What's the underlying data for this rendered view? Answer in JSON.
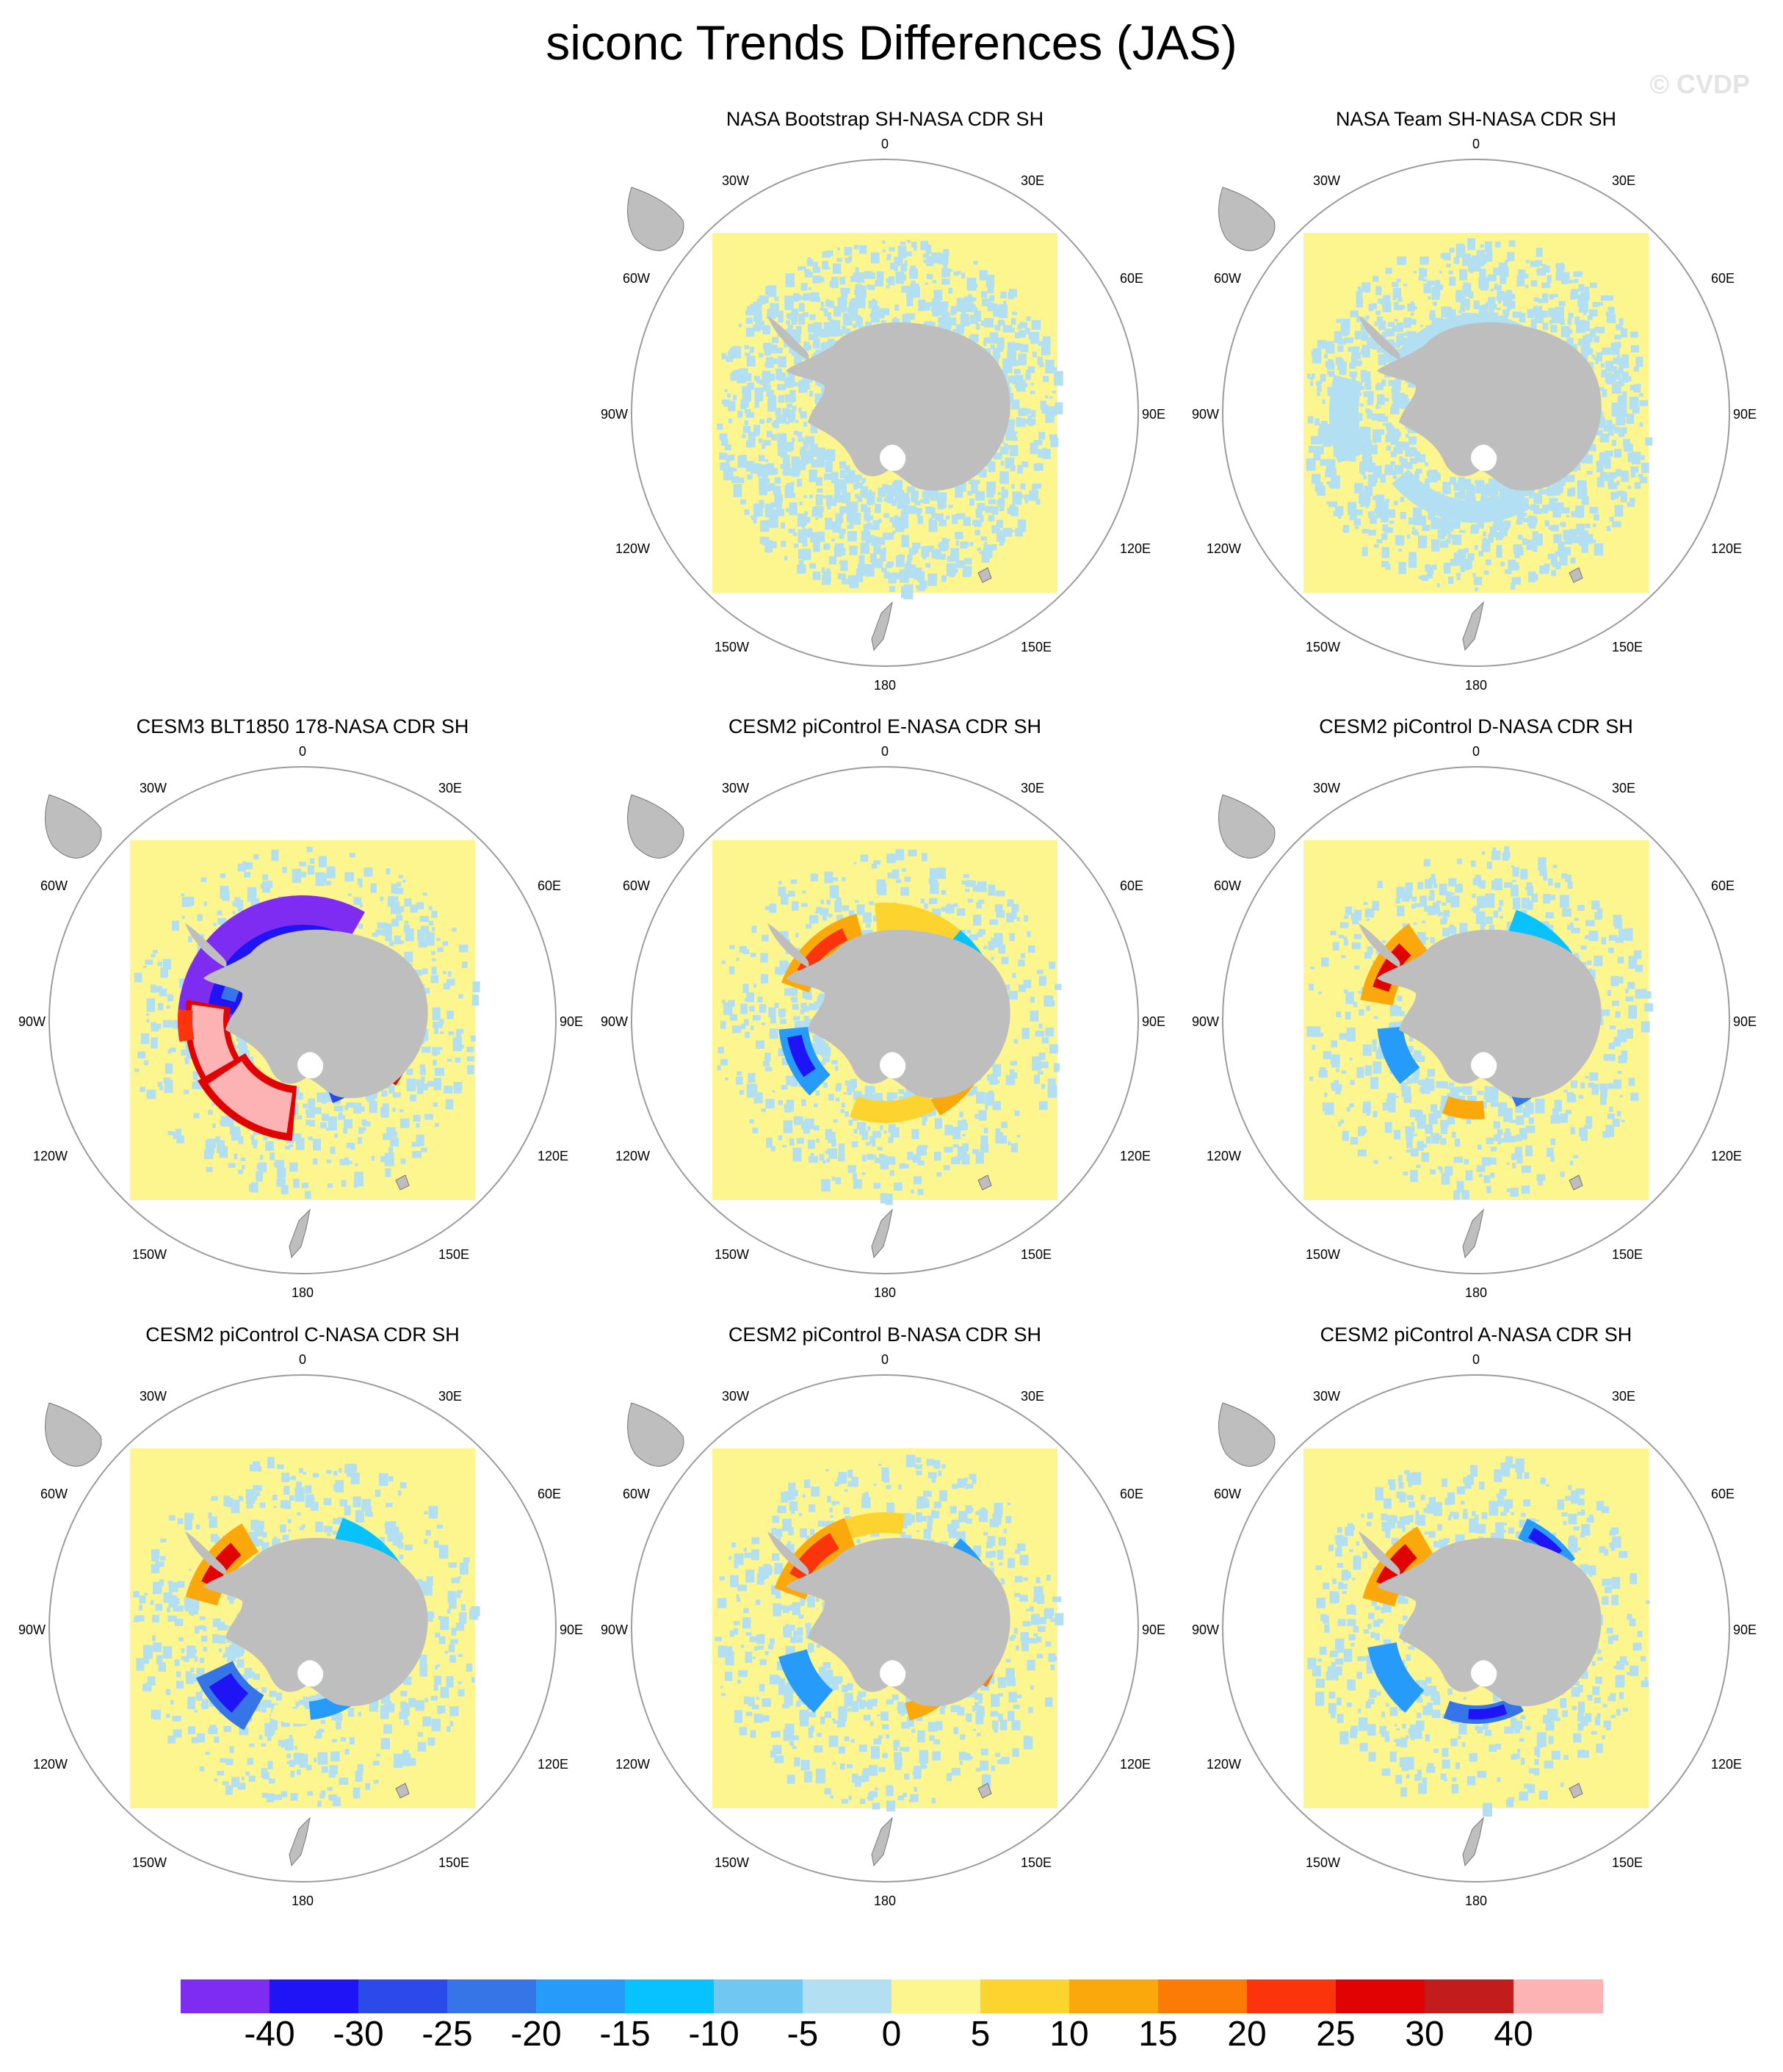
{
  "title": "siconc Trends Differences (JAS)",
  "watermark": "© CVDP",
  "longitude_labels": {
    "top": "0",
    "bottom": "180",
    "upper_left": "30W",
    "upper_right": "30E",
    "mid_upper_left": "60W",
    "mid_upper_right": "60E",
    "left": "90W",
    "right": "90E",
    "mid_lower_left": "120W",
    "mid_lower_right": "120E",
    "lower_left": "150W",
    "lower_right": "150E"
  },
  "panels": [
    {
      "title": "NASA Bootstrap SH-NASA CDR SH",
      "pattern": "noise_light"
    },
    {
      "title": "NASA Team SH-NASA CDR SH",
      "pattern": "noise_band"
    },
    {
      "title": "CESM3 BLT1850 178-NASA CDR SH",
      "pattern": "strong"
    },
    {
      "title": "CESM2 piControl E-NASA CDR SH",
      "pattern": "ring_e"
    },
    {
      "title": "CESM2 piControl D-NASA CDR SH",
      "pattern": "ring_d"
    },
    {
      "title": "CESM2 piControl C-NASA CDR SH",
      "pattern": "ring_c"
    },
    {
      "title": "CESM2 piControl B-NASA CDR SH",
      "pattern": "ring_b"
    },
    {
      "title": "CESM2 piControl A-NASA CDR SH",
      "pattern": "ring_a"
    }
  ],
  "colorbar": {
    "labels": [
      "-40",
      "-30",
      "-25",
      "-20",
      "-15",
      "-10",
      "-5",
      "0",
      "5",
      "10",
      "15",
      "20",
      "25",
      "30",
      "40"
    ],
    "colors": [
      "#7f2cf2",
      "#1f14f5",
      "#2c49ea",
      "#3575e8",
      "#279bfa",
      "#08c2fd",
      "#70c7f2",
      "#b3dff2",
      "#fdf58d",
      "#fdd42f",
      "#fba80c",
      "#fb7b06",
      "#fb340b",
      "#e10303",
      "#c31c1c",
      "#fdb3b3"
    ]
  },
  "colors": {
    "land": "#bebebe",
    "circle": "#9c9c9c"
  }
}
